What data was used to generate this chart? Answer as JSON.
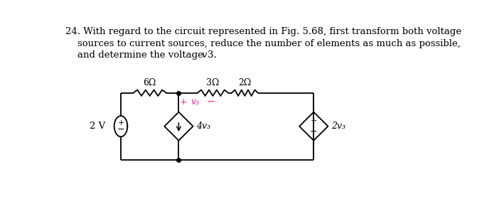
{
  "bg_color": "#ffffff",
  "text_color": "#000000",
  "pink_color": "#ff1493",
  "fig_width": 7.09,
  "fig_height": 2.87,
  "resistor_6_label": "6Ω",
  "resistor_3_label": "3Ω",
  "resistor_2_label": "2Ω",
  "v3_label": "v₃",
  "dep_src1_label": "4v₃",
  "dep_src2_label": "2v₃",
  "voltage_src_label": "2 V",
  "line1": "24. With regard to the circuit represented in Fig. 5.68, first transform both voltage",
  "line2": "    sources to current sources, reduce the number of elements as much as possible,",
  "line3a": "    and determine the voltage ",
  "line3b": "v",
  "line3c": "3."
}
